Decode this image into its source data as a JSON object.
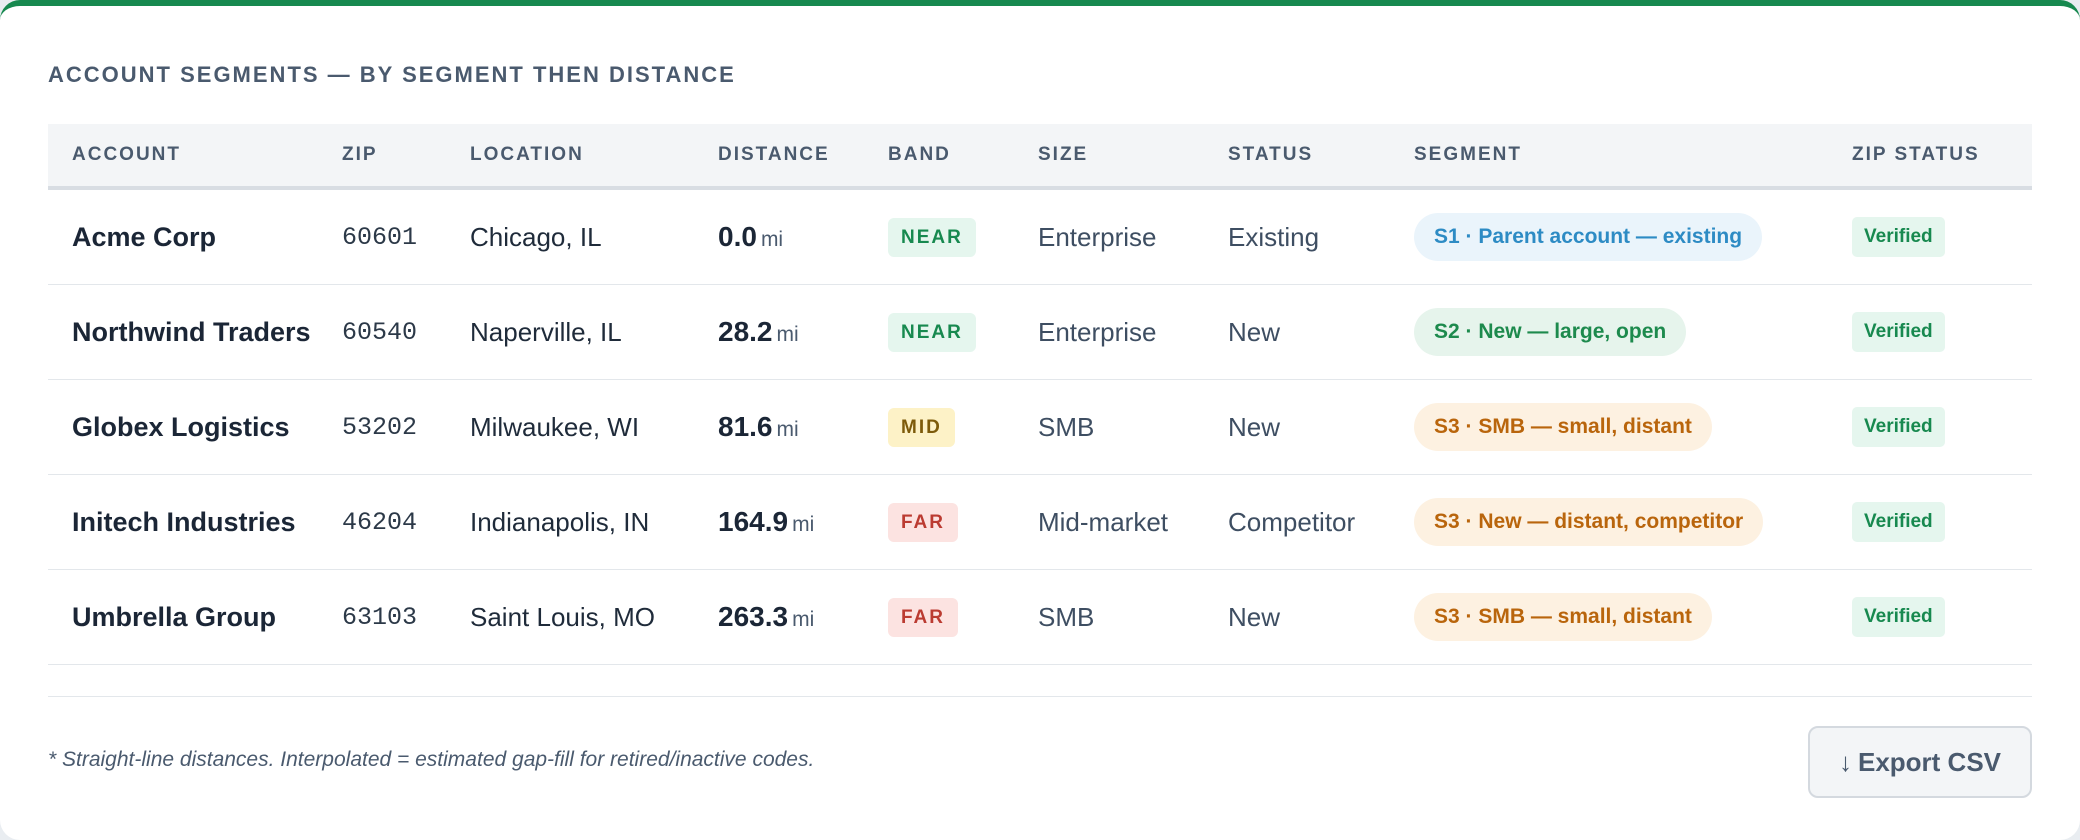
{
  "title": "ACCOUNT SEGMENTS — BY SEGMENT THEN DISTANCE",
  "columns": [
    "ACCOUNT",
    "ZIP",
    "LOCATION",
    "DISTANCE",
    "BAND",
    "SIZE",
    "STATUS",
    "SEGMENT",
    "ZIP STATUS"
  ],
  "colors": {
    "accent": "#17894f",
    "band_near": "#17894f",
    "band_mid": "#7d5b0a",
    "band_far": "#bb3b31",
    "segment_blue": "#2d8bc4",
    "segment_green": "#1d8a4d",
    "segment_amber": "#b9650c"
  },
  "rows": [
    {
      "account": "Acme Corp",
      "zip": "60601",
      "location": "Chicago, IL",
      "distance": "0.0",
      "unit": "mi",
      "band": "NEAR",
      "size": "Enterprise",
      "status": "Existing",
      "segment": "S1 · Parent account — existing",
      "segment_color": "blue",
      "zip_status": "Verified"
    },
    {
      "account": "Northwind Traders",
      "zip": "60540",
      "location": "Naperville, IL",
      "distance": "28.2",
      "unit": "mi",
      "band": "NEAR",
      "size": "Enterprise",
      "status": "New",
      "segment": "S2 · New — large, open",
      "segment_color": "green",
      "zip_status": "Verified"
    },
    {
      "account": "Globex Logistics",
      "zip": "53202",
      "location": "Milwaukee, WI",
      "distance": "81.6",
      "unit": "mi",
      "band": "MID",
      "size": "SMB",
      "status": "New",
      "segment": "S3 · SMB — small, distant",
      "segment_color": "amber",
      "zip_status": "Verified"
    },
    {
      "account": "Initech Industries",
      "zip": "46204",
      "location": "Indianapolis, IN",
      "distance": "164.9",
      "unit": "mi",
      "band": "FAR",
      "size": "Mid-market",
      "status": "Competitor",
      "segment": "S3 · New — distant, competitor",
      "segment_color": "amber",
      "zip_status": "Verified"
    },
    {
      "account": "Umbrella Group",
      "zip": "63103",
      "location": "Saint Louis, MO",
      "distance": "263.3",
      "unit": "mi",
      "band": "FAR",
      "size": "SMB",
      "status": "New",
      "segment": "S3 · SMB — small, distant",
      "segment_color": "amber",
      "zip_status": "Verified"
    }
  ],
  "footnote": "* Straight-line distances. Interpolated = estimated gap-fill for retired/inactive codes.",
  "export_button": {
    "icon": "↓",
    "label": "Export CSV"
  }
}
